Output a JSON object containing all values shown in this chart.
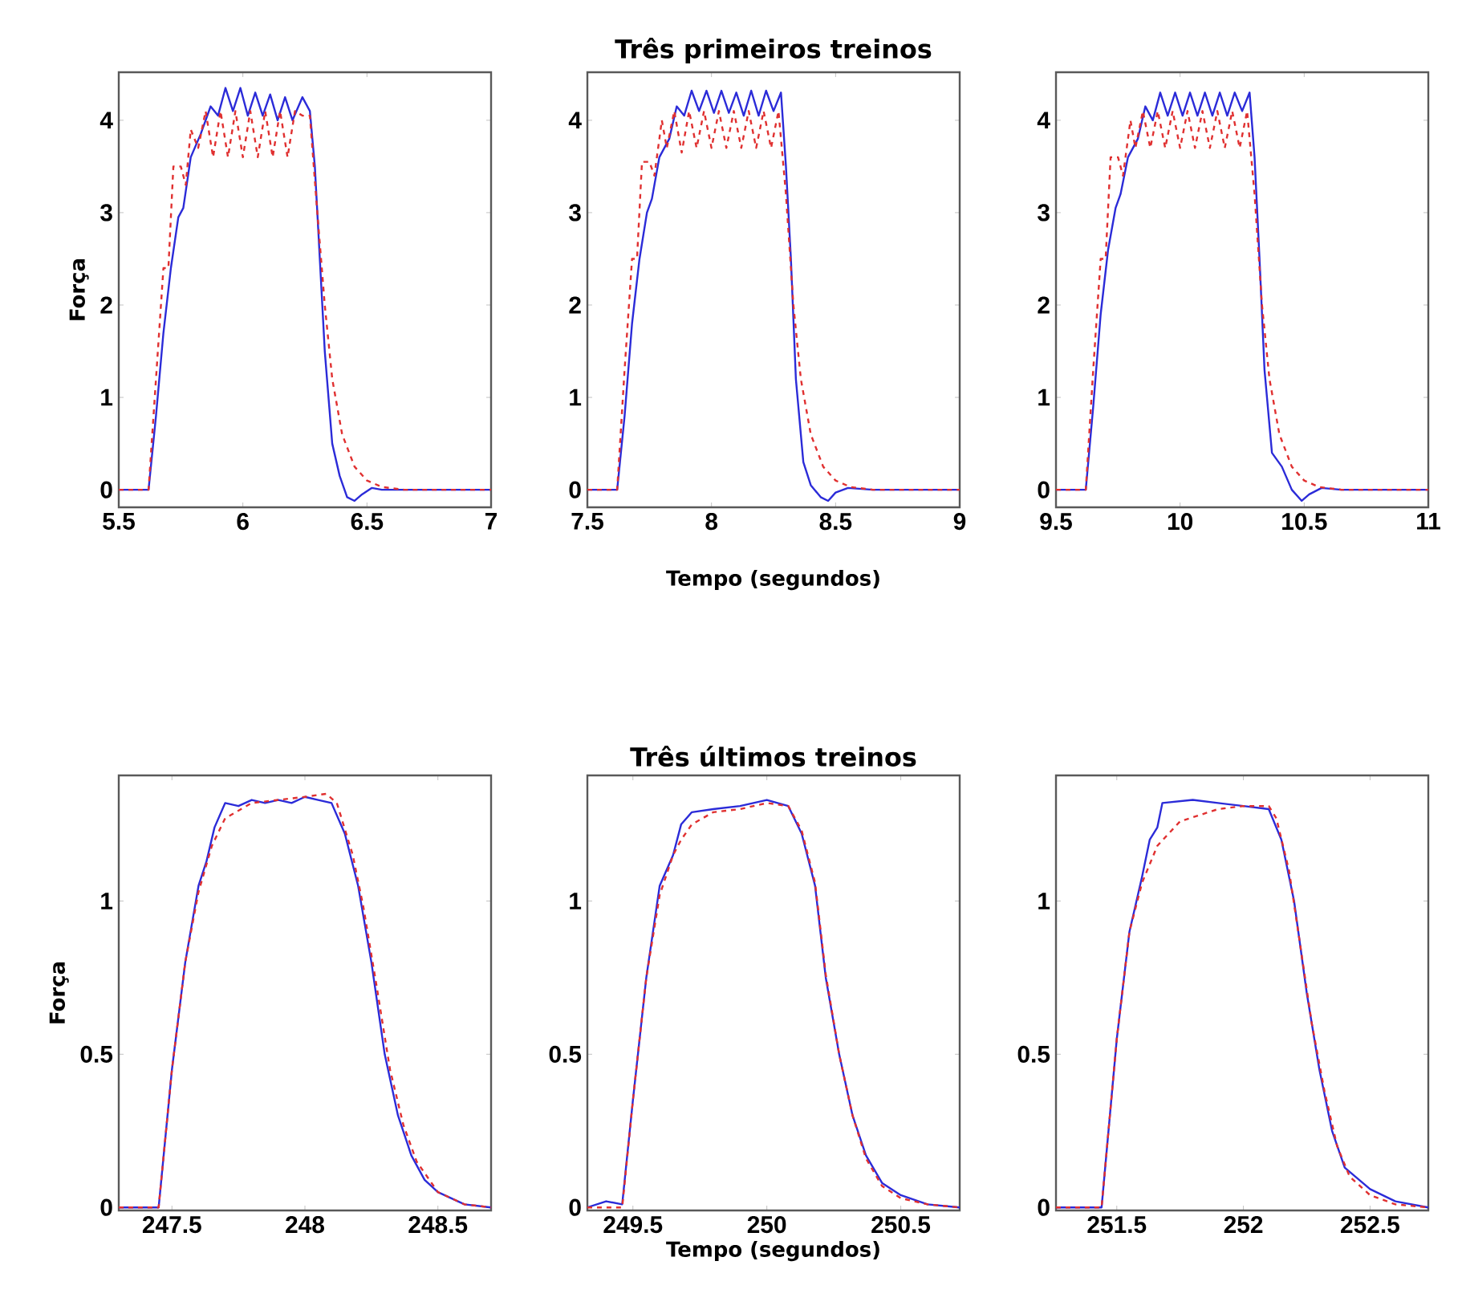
{
  "chart_data": [
    {
      "type": "line",
      "ylabel": "Força",
      "xlim": [
        5.5,
        7
      ],
      "ylim": [
        -0.19,
        4.52
      ],
      "xticks": [
        5.5,
        6,
        6.5,
        7
      ],
      "yticks": [
        0,
        1,
        2,
        3,
        4
      ],
      "series": [
        {
          "color": "#2b2bd8",
          "line_style": "solid",
          "x": [
            5.5,
            5.62,
            5.65,
            5.68,
            5.71,
            5.74,
            5.76,
            5.79,
            5.83,
            5.87,
            5.9,
            5.93,
            5.96,
            5.99,
            6.02,
            6.05,
            6.08,
            6.11,
            6.14,
            6.17,
            6.2,
            6.24,
            6.27,
            6.29,
            6.31,
            6.33,
            6.36,
            6.39,
            6.42,
            6.45,
            6.48,
            6.52,
            6.56,
            6.65,
            7
          ],
          "values": [
            0,
            0,
            0.8,
            1.7,
            2.4,
            2.95,
            3.05,
            3.6,
            3.85,
            4.15,
            4.05,
            4.35,
            4.1,
            4.35,
            4.05,
            4.3,
            4.05,
            4.28,
            4.0,
            4.25,
            4.0,
            4.25,
            4.1,
            3.5,
            2.5,
            1.5,
            0.5,
            0.15,
            -0.08,
            -0.12,
            -0.05,
            0.02,
            0,
            0,
            0
          ]
        },
        {
          "color": "#e03030",
          "line_style": "dashed",
          "x": [
            5.5,
            5.62,
            5.65,
            5.68,
            5.7,
            5.72,
            5.75,
            5.77,
            5.79,
            5.82,
            5.85,
            5.88,
            5.91,
            5.94,
            5.97,
            6.0,
            6.03,
            6.06,
            6.09,
            6.12,
            6.15,
            6.18,
            6.21,
            6.24,
            6.27,
            6.3,
            6.33,
            6.36,
            6.4,
            6.45,
            6.5,
            6.56,
            6.65,
            7
          ],
          "values": [
            0,
            0,
            1.2,
            2.4,
            2.4,
            3.5,
            3.5,
            3.3,
            3.9,
            3.7,
            4.1,
            3.6,
            4.1,
            3.6,
            4.1,
            3.6,
            4.1,
            3.6,
            4.1,
            3.6,
            4.1,
            3.6,
            4.1,
            4.05,
            4.05,
            3.0,
            2.0,
            1.2,
            0.6,
            0.25,
            0.1,
            0.03,
            0,
            0
          ]
        }
      ]
    },
    {
      "type": "line",
      "title": "Três primeiros treinos",
      "xlabel": "Tempo (segundos)",
      "xlim": [
        7.5,
        9
      ],
      "ylim": [
        -0.19,
        4.52
      ],
      "xticks": [
        7.5,
        8,
        8.5,
        9
      ],
      "yticks": [
        0,
        1,
        2,
        3,
        4
      ],
      "series": [
        {
          "color": "#2b2bd8",
          "line_style": "solid",
          "x": [
            7.5,
            7.62,
            7.65,
            7.68,
            7.71,
            7.74,
            7.76,
            7.79,
            7.83,
            7.86,
            7.89,
            7.92,
            7.95,
            7.98,
            8.01,
            8.04,
            8.07,
            8.1,
            8.13,
            8.16,
            8.19,
            8.22,
            8.25,
            8.28,
            8.3,
            8.32,
            8.34,
            8.37,
            8.4,
            8.44,
            8.47,
            8.5,
            8.55,
            8.65,
            9
          ],
          "values": [
            0,
            0,
            0.8,
            1.8,
            2.5,
            3.0,
            3.15,
            3.6,
            3.8,
            4.15,
            4.05,
            4.32,
            4.1,
            4.32,
            4.08,
            4.32,
            4.08,
            4.3,
            4.05,
            4.32,
            4.05,
            4.32,
            4.1,
            4.3,
            3.5,
            2.5,
            1.2,
            0.3,
            0.05,
            -0.08,
            -0.12,
            -0.03,
            0.02,
            0,
            0
          ]
        },
        {
          "color": "#e03030",
          "line_style": "dashed",
          "x": [
            7.5,
            7.62,
            7.65,
            7.68,
            7.7,
            7.72,
            7.75,
            7.77,
            7.8,
            7.82,
            7.85,
            7.88,
            7.91,
            7.94,
            7.97,
            8.0,
            8.03,
            8.06,
            8.09,
            8.12,
            8.15,
            8.18,
            8.21,
            8.24,
            8.27,
            8.3,
            8.33,
            8.36,
            8.4,
            8.45,
            8.5,
            8.56,
            8.65,
            9
          ],
          "values": [
            0,
            0,
            1.3,
            2.5,
            2.5,
            3.55,
            3.55,
            3.4,
            4.0,
            3.7,
            4.1,
            3.65,
            4.1,
            3.7,
            4.1,
            3.7,
            4.1,
            3.7,
            4.1,
            3.7,
            4.1,
            3.7,
            4.1,
            3.7,
            4.1,
            3.2,
            2.0,
            1.2,
            0.6,
            0.25,
            0.1,
            0.03,
            0,
            0
          ]
        }
      ]
    },
    {
      "type": "line",
      "xlim": [
        9.5,
        11
      ],
      "ylim": [
        -0.19,
        4.52
      ],
      "xticks": [
        9.5,
        10,
        10.5,
        11
      ],
      "yticks": [
        0,
        1,
        2,
        3,
        4
      ],
      "series": [
        {
          "color": "#2b2bd8",
          "line_style": "solid",
          "x": [
            9.5,
            9.62,
            9.65,
            9.68,
            9.71,
            9.74,
            9.76,
            9.79,
            9.83,
            9.86,
            9.89,
            9.92,
            9.95,
            9.98,
            10.01,
            10.04,
            10.07,
            10.1,
            10.13,
            10.16,
            10.19,
            10.22,
            10.25,
            10.28,
            10.3,
            10.32,
            10.34,
            10.37,
            10.41,
            10.45,
            10.49,
            10.52,
            10.57,
            10.65,
            11
          ],
          "values": [
            0,
            0,
            0.9,
            1.9,
            2.6,
            3.05,
            3.2,
            3.6,
            3.8,
            4.15,
            4.0,
            4.3,
            4.05,
            4.3,
            4.05,
            4.3,
            4.05,
            4.3,
            4.05,
            4.3,
            4.05,
            4.3,
            4.1,
            4.3,
            3.6,
            2.5,
            1.3,
            0.4,
            0.25,
            0.0,
            -0.12,
            -0.05,
            0.02,
            0,
            0
          ]
        },
        {
          "color": "#e03030",
          "line_style": "dashed",
          "x": [
            9.5,
            9.62,
            9.65,
            9.68,
            9.7,
            9.72,
            9.75,
            9.77,
            9.8,
            9.82,
            9.85,
            9.88,
            9.91,
            9.94,
            9.97,
            10.0,
            10.03,
            10.06,
            10.09,
            10.12,
            10.15,
            10.18,
            10.21,
            10.24,
            10.27,
            10.3,
            10.33,
            10.36,
            10.4,
            10.45,
            10.5,
            10.56,
            10.65,
            11
          ],
          "values": [
            0,
            0,
            1.3,
            2.5,
            2.5,
            3.6,
            3.6,
            3.4,
            4.0,
            3.7,
            4.1,
            3.7,
            4.1,
            3.7,
            4.1,
            3.7,
            4.1,
            3.7,
            4.1,
            3.7,
            4.1,
            3.7,
            4.1,
            3.7,
            4.1,
            3.2,
            2.0,
            1.2,
            0.6,
            0.25,
            0.1,
            0.03,
            0,
            0
          ]
        }
      ]
    },
    {
      "type": "line",
      "ylabel": "Força",
      "xlim": [
        247.3,
        248.7
      ],
      "ylim": [
        -0.01,
        1.41
      ],
      "xticks": [
        247.5,
        248,
        248.5
      ],
      "yticks": [
        0,
        0.5,
        1
      ],
      "series": [
        {
          "color": "#2b2bd8",
          "line_style": "solid",
          "x": [
            247.3,
            247.45,
            247.5,
            247.55,
            247.6,
            247.63,
            247.66,
            247.7,
            247.75,
            247.8,
            247.85,
            247.9,
            247.95,
            248.0,
            248.05,
            248.1,
            248.15,
            248.2,
            248.25,
            248.3,
            248.35,
            248.4,
            248.45,
            248.5,
            248.6,
            248.7
          ],
          "values": [
            0,
            0,
            0.45,
            0.8,
            1.05,
            1.13,
            1.24,
            1.32,
            1.31,
            1.33,
            1.32,
            1.33,
            1.32,
            1.34,
            1.33,
            1.32,
            1.22,
            1.05,
            0.8,
            0.5,
            0.3,
            0.17,
            0.09,
            0.05,
            0.01,
            0
          ]
        },
        {
          "color": "#e03030",
          "line_style": "dashed",
          "x": [
            247.3,
            247.45,
            247.5,
            247.55,
            247.6,
            247.65,
            247.7,
            247.8,
            247.9,
            248.0,
            248.08,
            248.12,
            248.18,
            248.22,
            248.27,
            248.32,
            248.37,
            248.42,
            248.5,
            248.6,
            248.7
          ],
          "values": [
            0,
            0,
            0.45,
            0.8,
            1.03,
            1.18,
            1.27,
            1.32,
            1.33,
            1.34,
            1.35,
            1.32,
            1.15,
            0.98,
            0.72,
            0.45,
            0.27,
            0.15,
            0.05,
            0.01,
            0
          ]
        }
      ]
    },
    {
      "type": "line",
      "title": "Três últimos treinos",
      "xlabel": "Tempo (segundos)",
      "xlim": [
        249.33,
        250.72
      ],
      "ylim": [
        -0.01,
        1.41
      ],
      "xticks": [
        249.5,
        250,
        250.5
      ],
      "yticks": [
        0,
        0.5,
        1
      ],
      "series": [
        {
          "color": "#2b2bd8",
          "line_style": "solid",
          "x": [
            249.33,
            249.4,
            249.46,
            249.5,
            249.55,
            249.6,
            249.65,
            249.68,
            249.72,
            249.8,
            249.9,
            250.0,
            250.08,
            250.13,
            250.18,
            250.22,
            250.27,
            250.32,
            250.37,
            250.43,
            250.5,
            250.6,
            250.72
          ],
          "values": [
            0,
            0.02,
            0.01,
            0.35,
            0.75,
            1.05,
            1.15,
            1.25,
            1.29,
            1.3,
            1.31,
            1.33,
            1.31,
            1.22,
            1.05,
            0.75,
            0.5,
            0.3,
            0.17,
            0.08,
            0.04,
            0.01,
            0
          ]
        },
        {
          "color": "#e03030",
          "line_style": "dashed",
          "x": [
            249.33,
            249.46,
            249.5,
            249.55,
            249.6,
            249.65,
            249.68,
            249.72,
            249.8,
            249.9,
            250.0,
            250.08,
            250.13,
            250.18,
            250.22,
            250.27,
            250.32,
            250.37,
            250.43,
            250.5,
            250.6,
            250.72
          ],
          "values": [
            0,
            0,
            0.35,
            0.75,
            1.02,
            1.15,
            1.2,
            1.25,
            1.29,
            1.3,
            1.32,
            1.31,
            1.23,
            1.06,
            0.76,
            0.5,
            0.3,
            0.16,
            0.07,
            0.03,
            0.01,
            0
          ]
        }
      ]
    },
    {
      "type": "line",
      "xlim": [
        251.26,
        252.73
      ],
      "ylim": [
        -0.01,
        1.41
      ],
      "xticks": [
        251.5,
        252,
        252.5
      ],
      "yticks": [
        0,
        0.5,
        1
      ],
      "series": [
        {
          "color": "#2b2bd8",
          "line_style": "solid",
          "x": [
            251.26,
            251.44,
            251.5,
            251.55,
            251.6,
            251.63,
            251.66,
            251.68,
            251.8,
            251.9,
            252.0,
            252.1,
            252.15,
            252.2,
            252.25,
            252.3,
            252.35,
            252.4,
            252.5,
            252.6,
            252.73
          ],
          "values": [
            0,
            0,
            0.55,
            0.9,
            1.08,
            1.2,
            1.24,
            1.32,
            1.33,
            1.32,
            1.31,
            1.3,
            1.2,
            1.0,
            0.7,
            0.45,
            0.25,
            0.13,
            0.06,
            0.02,
            0
          ]
        },
        {
          "color": "#e03030",
          "line_style": "dashed",
          "x": [
            251.26,
            251.44,
            251.5,
            251.55,
            251.6,
            251.66,
            251.75,
            251.9,
            252.0,
            252.1,
            252.13,
            252.18,
            252.22,
            252.27,
            252.32,
            252.37,
            252.42,
            252.5,
            252.6,
            252.73
          ],
          "values": [
            0,
            0,
            0.55,
            0.9,
            1.06,
            1.18,
            1.26,
            1.3,
            1.31,
            1.31,
            1.27,
            1.1,
            0.88,
            0.6,
            0.38,
            0.2,
            0.1,
            0.04,
            0.01,
            0
          ]
        }
      ]
    }
  ]
}
